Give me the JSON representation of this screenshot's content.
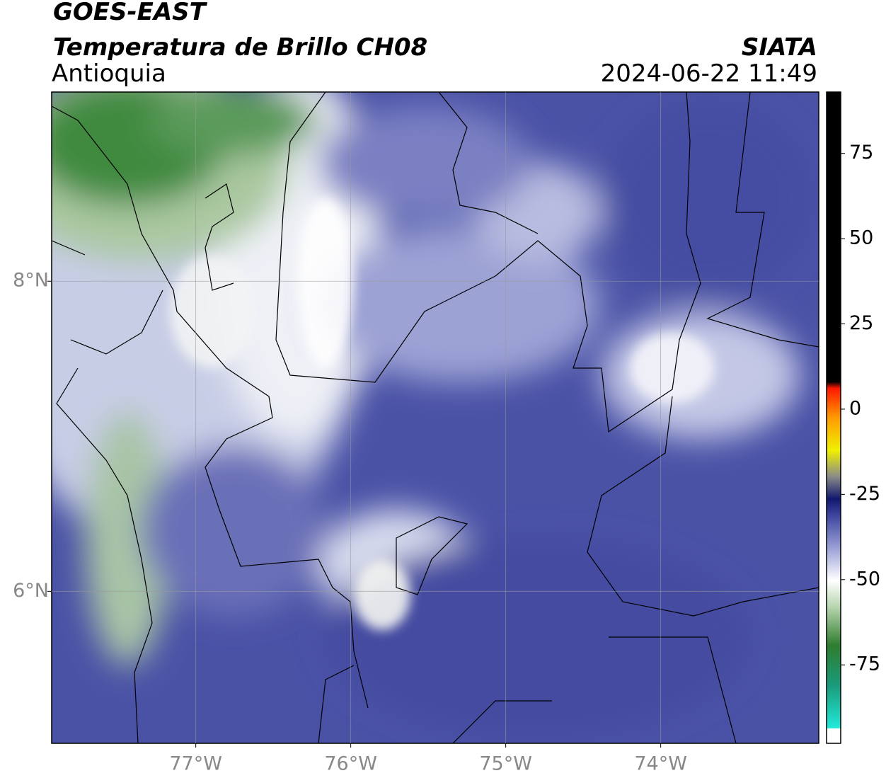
{
  "header": {
    "satellite": "GOES-EAST",
    "product": "Temperatura de Brillo CH08",
    "region": "Antioquia",
    "source": "SIATA",
    "datetime": "2024-06-22 11:49"
  },
  "map": {
    "lonlim": [
      -77.93,
      -72.98
    ],
    "latlim": [
      5.02,
      9.22
    ],
    "lonticks": [
      {
        "value": -77,
        "label": "77°W"
      },
      {
        "value": -76,
        "label": "76°W"
      },
      {
        "value": -75,
        "label": "75°W"
      },
      {
        "value": -74,
        "label": "74°W"
      }
    ],
    "latticks": [
      {
        "value": 8,
        "label": "8°N"
      },
      {
        "value": 6,
        "label": "6°N"
      }
    ]
  },
  "colorbar": {
    "lim": [
      -98,
      93
    ],
    "ticks": [
      75,
      50,
      25,
      0,
      -25,
      -50,
      -75
    ]
  }
}
